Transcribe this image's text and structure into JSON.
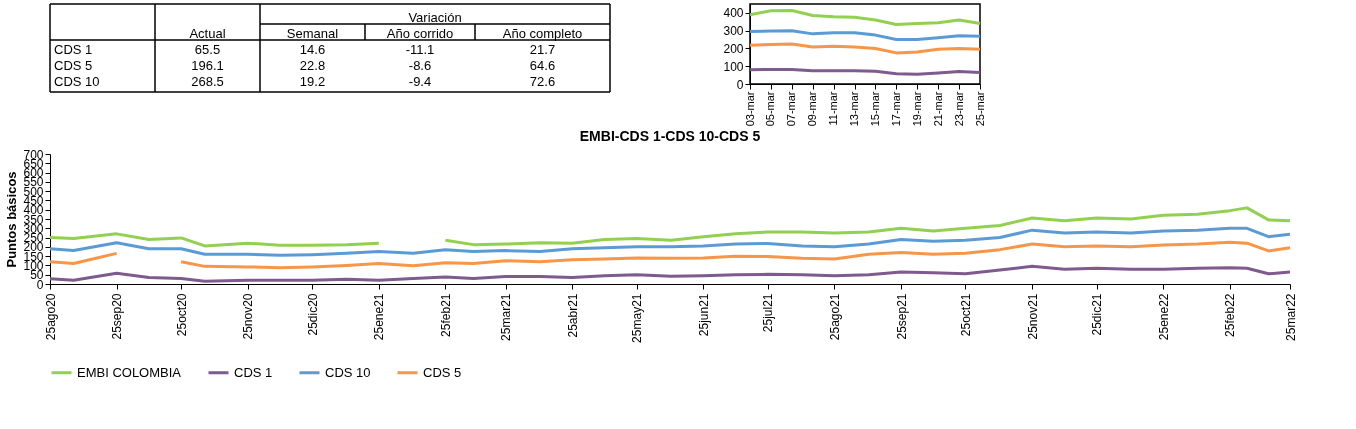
{
  "chart_data": [
    {
      "type": "line",
      "title": "EMBI-CDS 1-CDS 10-CDS 5",
      "ylabel": "Puntos básicos",
      "legend": "bottom",
      "grid": false,
      "x": [
        "2020-08-25",
        "2020-09-05",
        "2020-09-25",
        "2020-10-10",
        "2020-10-25",
        "2020-11-05",
        "2020-11-25",
        "2020-12-10",
        "2020-12-25",
        "2021-01-10",
        "2021-01-25",
        "2021-02-10",
        "2021-02-25",
        "2021-03-10",
        "2021-03-25",
        "2021-04-10",
        "2021-04-25",
        "2021-05-10",
        "2021-05-25",
        "2021-06-10",
        "2021-06-25",
        "2021-07-10",
        "2021-07-25",
        "2021-08-10",
        "2021-08-25",
        "2021-09-10",
        "2021-09-25",
        "2021-10-10",
        "2021-10-25",
        "2021-11-10",
        "2021-11-25",
        "2021-12-10",
        "2021-12-25",
        "2022-01-10",
        "2022-01-25",
        "2022-02-10",
        "2022-02-25",
        "2022-03-05",
        "2022-03-15",
        "2022-03-25"
      ],
      "xlim": [
        "2020-08-25",
        "2022-03-25"
      ],
      "xticks": [
        {
          "value": "2020-08-25",
          "label": "25ago20"
        },
        {
          "value": "2020-09-25",
          "label": "25sep20"
        },
        {
          "value": "2020-10-25",
          "label": "25oct20"
        },
        {
          "value": "2020-11-25",
          "label": "25nov20"
        },
        {
          "value": "2020-12-25",
          "label": "25dic20"
        },
        {
          "value": "2021-01-25",
          "label": "25ene21"
        },
        {
          "value": "2021-02-25",
          "label": "25feb21"
        },
        {
          "value": "2021-03-25",
          "label": "25mar21"
        },
        {
          "value": "2021-04-25",
          "label": "25abr21"
        },
        {
          "value": "2021-05-25",
          "label": "25may21"
        },
        {
          "value": "2021-06-25",
          "label": "25jun21"
        },
        {
          "value": "2021-07-25",
          "label": "25jul21"
        },
        {
          "value": "2021-08-25",
          "label": "25ago21"
        },
        {
          "value": "2021-09-25",
          "label": "25sep21"
        },
        {
          "value": "2021-10-25",
          "label": "25oct21"
        },
        {
          "value": "2021-11-25",
          "label": "25nov21"
        },
        {
          "value": "2021-12-25",
          "label": "25dic21"
        },
        {
          "value": "2022-01-25",
          "label": "25ene22"
        },
        {
          "value": "2022-02-25",
          "label": "25feb22"
        },
        {
          "value": "2022-03-25",
          "label": "25mar22"
        }
      ],
      "ylim": [
        0,
        700
      ],
      "yticks": [
        0,
        50,
        100,
        150,
        200,
        250,
        300,
        350,
        400,
        450,
        500,
        550,
        600,
        650,
        700
      ],
      "series": [
        {
          "name": "EMBI COLOMBIA",
          "color": "#92d050",
          "values": [
            250,
            245,
            270,
            240,
            248,
            205,
            220,
            208,
            208,
            212,
            220,
            null,
            235,
            212,
            215,
            222,
            220,
            240,
            245,
            235,
            255,
            270,
            280,
            280,
            275,
            280,
            300,
            285,
            300,
            315,
            355,
            340,
            355,
            350,
            370,
            375,
            395,
            410,
            345,
            340
          ]
        },
        {
          "name": "CDS 1",
          "color": "#7f5a8f",
          "values": [
            28,
            20,
            58,
            35,
            30,
            15,
            20,
            20,
            20,
            25,
            20,
            30,
            38,
            30,
            40,
            40,
            35,
            45,
            50,
            42,
            45,
            50,
            52,
            50,
            45,
            50,
            65,
            60,
            55,
            75,
            95,
            80,
            85,
            80,
            80,
            85,
            88,
            85,
            55,
            65
          ]
        },
        {
          "name": "CDS 10",
          "color": "#5b9bd5",
          "values": [
            190,
            180,
            222,
            190,
            190,
            160,
            160,
            155,
            158,
            165,
            175,
            165,
            185,
            175,
            180,
            175,
            190,
            195,
            200,
            200,
            205,
            215,
            218,
            205,
            200,
            215,
            240,
            230,
            235,
            250,
            290,
            275,
            280,
            275,
            285,
            290,
            300,
            300,
            255,
            268
          ]
        },
        {
          "name": "CDS 5",
          "color": "#f79646",
          "values": [
            120,
            110,
            165,
            null,
            120,
            95,
            92,
            88,
            92,
            100,
            110,
            98,
            115,
            110,
            125,
            120,
            130,
            135,
            140,
            138,
            140,
            150,
            148,
            138,
            135,
            160,
            170,
            160,
            165,
            185,
            215,
            200,
            205,
            200,
            210,
            215,
            225,
            220,
            178,
            195
          ]
        }
      ]
    },
    {
      "type": "other",
      "annotations": [
        "Variación"
      ],
      "categories": [
        "Actual",
        "Semanal",
        "Año corrido",
        "Año completo"
      ],
      "y_categories": [
        "CDS 1",
        "CDS 5",
        "CDS 10"
      ],
      "cell_labels": [
        [
          "65.5",
          "14.6",
          "-11.1",
          "21.7"
        ],
        [
          "196.1",
          "22.8",
          "-8.6",
          "64.6"
        ],
        [
          "268.5",
          "19.2",
          "-9.4",
          "72.6"
        ]
      ]
    },
    {
      "type": "line",
      "legend": false,
      "grid": false,
      "categories": [
        "03-mar",
        "05-mar",
        "07-mar",
        "09-mar",
        "11-mar",
        "13-mar",
        "15-mar",
        "17-mar",
        "19-mar",
        "21-mar",
        "23-mar",
        "25-mar"
      ],
      "ylim": [
        0,
        450
      ],
      "yticks": [
        0,
        100,
        200,
        300,
        400
      ],
      "series": [
        {
          "color": "#92d050",
          "values": [
            390,
            412,
            413,
            385,
            378,
            375,
            360,
            335,
            340,
            345,
            360,
            340
          ]
        },
        {
          "color": "#7f5a8f",
          "values": [
            80,
            82,
            82,
            75,
            75,
            75,
            72,
            58,
            55,
            62,
            70,
            65
          ]
        },
        {
          "color": "#5b9bd5",
          "values": [
            295,
            298,
            300,
            282,
            288,
            288,
            275,
            250,
            250,
            260,
            272,
            268
          ]
        },
        {
          "color": "#f79646",
          "values": [
            218,
            222,
            225,
            208,
            212,
            208,
            200,
            175,
            180,
            195,
            200,
            195
          ]
        }
      ]
    }
  ]
}
